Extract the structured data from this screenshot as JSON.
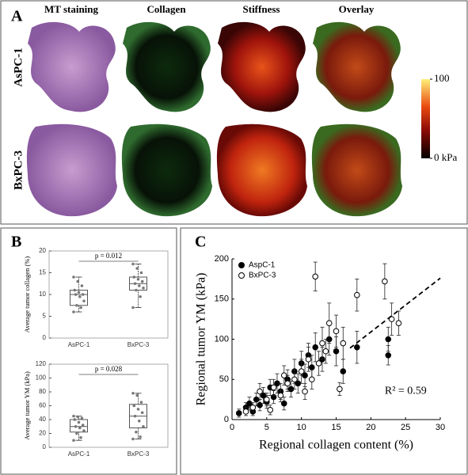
{
  "panel_a": {
    "label": "A",
    "columns": [
      "MT staining",
      "Collagen",
      "Stiffness",
      "Overlay"
    ],
    "rows": [
      "AsPC-1",
      "BxPC-3"
    ],
    "colorbar_ticks": [
      {
        "value": 100,
        "label": "100"
      },
      {
        "value": 0,
        "label": "0 kPa"
      }
    ]
  },
  "panel_b": {
    "label": "B"
  },
  "panel_c": {
    "label": "C"
  },
  "chart_data": [
    {
      "type": "box",
      "ylabel": "Average tumor collagen (%)",
      "categories": [
        "AsPC-1",
        "BxPC-3"
      ],
      "ylim": [
        0,
        20
      ],
      "yticks": [
        0,
        5,
        10,
        15,
        20
      ],
      "annotation": "p = 0.012",
      "boxes": [
        {
          "min": 6,
          "q1": 7.5,
          "median": 10,
          "q3": 11,
          "max": 14,
          "points": [
            6,
            7,
            7.5,
            8.5,
            9.5,
            10,
            10,
            10.5,
            11,
            12,
            13,
            14
          ]
        },
        {
          "min": 7,
          "q1": 11,
          "median": 12.5,
          "q3": 14,
          "max": 17,
          "points": [
            7,
            9.5,
            11,
            11.5,
            12,
            12.5,
            13,
            13.5,
            14,
            15,
            16,
            17
          ]
        }
      ]
    },
    {
      "type": "box",
      "ylabel": "Average tumor YM (kPa)",
      "categories": [
        "AsPC-1",
        "BxPC-3"
      ],
      "ylim": [
        0,
        120
      ],
      "yticks": [
        0,
        20,
        40,
        60,
        80,
        100,
        120
      ],
      "annotation": "p = 0.028",
      "boxes": [
        {
          "min": 10,
          "q1": 22,
          "median": 30,
          "q3": 40,
          "max": 45,
          "points": [
            10,
            14,
            20,
            24,
            28,
            30,
            32,
            36,
            40,
            42,
            44,
            45
          ]
        },
        {
          "min": 12,
          "q1": 28,
          "median": 45,
          "q3": 62,
          "max": 78,
          "points": [
            12,
            15,
            22,
            30,
            38,
            45,
            50,
            55,
            60,
            65,
            75,
            78
          ]
        }
      ]
    },
    {
      "type": "scatter",
      "xlabel": "Regional collagen content (%)",
      "ylabel": "Regional tumor YM (kPa)",
      "xlim": [
        0,
        30
      ],
      "ylim": [
        0,
        200
      ],
      "xticks": [
        0,
        5,
        10,
        15,
        20,
        25,
        30
      ],
      "yticks": [
        0,
        50,
        100,
        150,
        200
      ],
      "annotation": "R² = 0.59",
      "series": [
        {
          "name": "AspC-1",
          "color": "#000000",
          "filled": true,
          "x": [
            1,
            2,
            2.5,
            3,
            3.5,
            4,
            4.5,
            5,
            5.5,
            6,
            6.5,
            7,
            7.5,
            8,
            8.5,
            9,
            9.5,
            10,
            10.5,
            11,
            11.5,
            12,
            13,
            14,
            15,
            16,
            18,
            22.5,
            22.5
          ],
          "values": [
            8,
            15,
            20,
            10,
            25,
            18,
            30,
            22,
            40,
            28,
            45,
            35,
            20,
            50,
            38,
            60,
            45,
            70,
            55,
            80,
            65,
            90,
            75,
            100,
            85,
            60,
            90,
            80,
            100
          ],
          "errors": [
            5,
            6,
            8,
            5,
            8,
            7,
            10,
            8,
            10,
            8,
            12,
            10,
            8,
            12,
            10,
            15,
            12,
            15,
            14,
            15,
            15,
            18,
            15,
            20,
            18,
            15,
            20,
            12,
            15
          ]
        },
        {
          "name": "BxPC-3",
          "color": "#000000",
          "filled": false,
          "x": [
            2,
            3,
            4,
            5,
            5.5,
            6,
            7,
            7.5,
            8,
            9,
            10,
            10.5,
            11,
            11.5,
            12,
            12.5,
            13,
            13.5,
            14,
            15,
            15.5,
            16,
            18,
            22,
            23,
            24
          ],
          "values": [
            10,
            15,
            35,
            25,
            12,
            40,
            30,
            55,
            45,
            50,
            60,
            35,
            75,
            50,
            178,
            70,
            95,
            85,
            120,
            110,
            38,
            95,
            155,
            172,
            125,
            120
          ],
          "errors": [
            5,
            6,
            10,
            8,
            6,
            10,
            8,
            12,
            10,
            12,
            15,
            10,
            15,
            12,
            18,
            15,
            20,
            15,
            25,
            20,
            8,
            20,
            20,
            22,
            20,
            15
          ]
        }
      ],
      "fit_line": {
        "x": [
          17,
          30
        ],
        "y": [
          89,
          176
        ]
      }
    }
  ]
}
